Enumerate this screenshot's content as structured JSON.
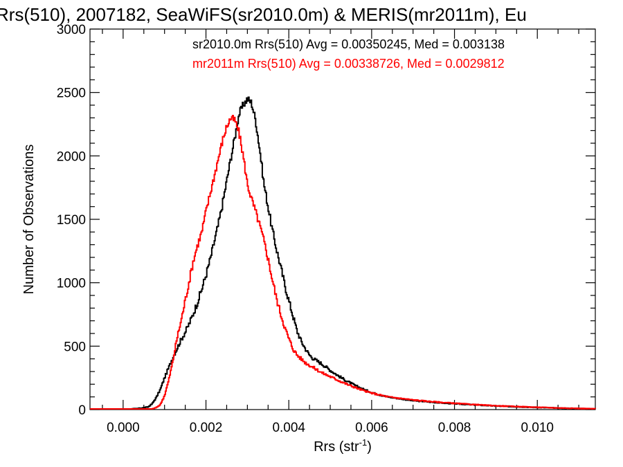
{
  "chart_data": {
    "type": "line",
    "title": "Rrs(510), 2007182, SeaWiFS(sr2010.0m) & MERIS(mr2011m), Eu",
    "xlabel": "Rrs (str",
    "xlabel_sup": "-1",
    "xlabel_close": ")",
    "ylabel": "Number of Observations",
    "xlim": [
      -0.0008,
      0.0114
    ],
    "ylim": [
      0,
      3000
    ],
    "grid": false,
    "x_ticks": [
      {
        "value": 0.0,
        "label": "0.000"
      },
      {
        "value": 0.002,
        "label": "0.002"
      },
      {
        "value": 0.004,
        "label": "0.004"
      },
      {
        "value": 0.006,
        "label": "0.006"
      },
      {
        "value": 0.008,
        "label": "0.008"
      },
      {
        "value": 0.01,
        "label": "0.010"
      }
    ],
    "y_ticks": [
      {
        "value": 0,
        "label": "0"
      },
      {
        "value": 500,
        "label": "500"
      },
      {
        "value": 1000,
        "label": "1000"
      },
      {
        "value": 1500,
        "label": "1500"
      },
      {
        "value": 2000,
        "label": "2000"
      },
      {
        "value": 2500,
        "label": "2500"
      },
      {
        "value": 3000,
        "label": "3000"
      }
    ],
    "annotations": [
      {
        "text": "sr2010.0m Rrs(510) Avg = 0.00350245, Med = 0.003138",
        "color": "#000000"
      },
      {
        "text": "mr2011m Rrs(510) Avg = 0.00338726, Med = 0.0029812",
        "color": "#ff0000"
      }
    ],
    "series": [
      {
        "color": "#000000",
        "x": [
          -0.0008,
          0.0,
          0.0004,
          0.0006,
          0.0007,
          0.0008,
          0.0009,
          0.001,
          0.0011,
          0.0012,
          0.0013,
          0.0014,
          0.0015,
          0.0016,
          0.0017,
          0.0018,
          0.0019,
          0.002,
          0.0021,
          0.0022,
          0.0023,
          0.0024,
          0.0025,
          0.0026,
          0.0027,
          0.0028,
          0.0029,
          0.003,
          0.0031,
          0.0032,
          0.0033,
          0.0034,
          0.0035,
          0.0036,
          0.0037,
          0.0038,
          0.0039,
          0.004,
          0.0041,
          0.0042,
          0.0043,
          0.0044,
          0.0045,
          0.0046,
          0.0047,
          0.0048,
          0.005,
          0.0052,
          0.0054,
          0.0056,
          0.0058,
          0.006,
          0.0062,
          0.0064,
          0.0066,
          0.0068,
          0.007,
          0.0074,
          0.0078,
          0.0082,
          0.0086,
          0.009,
          0.0095,
          0.01,
          0.0105,
          0.011,
          0.0114
        ],
        "values": [
          0,
          0,
          10,
          20,
          45,
          95,
          160,
          250,
          330,
          410,
          480,
          550,
          610,
          680,
          760,
          850,
          950,
          1060,
          1180,
          1320,
          1460,
          1620,
          1800,
          1980,
          2150,
          2330,
          2400,
          2450,
          2420,
          2280,
          2050,
          1780,
          1600,
          1420,
          1270,
          1130,
          990,
          860,
          740,
          620,
          540,
          480,
          430,
          400,
          380,
          360,
          310,
          265,
          225,
          190,
          160,
          135,
          115,
          100,
          90,
          80,
          70,
          60,
          50,
          42,
          35,
          28,
          22,
          17,
          12,
          8,
          5
        ]
      },
      {
        "color": "#ff0000",
        "x": [
          -0.0008,
          0.0,
          0.0004,
          0.0006,
          0.0007,
          0.0008,
          0.0009,
          0.001,
          0.0011,
          0.0012,
          0.0013,
          0.0014,
          0.0015,
          0.0016,
          0.0017,
          0.0018,
          0.0019,
          0.002,
          0.0021,
          0.0022,
          0.0023,
          0.0024,
          0.0025,
          0.0026,
          0.0027,
          0.0028,
          0.0029,
          0.003,
          0.0031,
          0.0032,
          0.0033,
          0.0034,
          0.0035,
          0.0036,
          0.0037,
          0.0038,
          0.0039,
          0.004,
          0.0041,
          0.0042,
          0.0043,
          0.0044,
          0.0045,
          0.0046,
          0.0047,
          0.0048,
          0.005,
          0.0052,
          0.0054,
          0.0056,
          0.0058,
          0.006,
          0.0062,
          0.0064,
          0.0066,
          0.0068,
          0.007,
          0.0074,
          0.0078,
          0.0082,
          0.0086,
          0.009,
          0.0095,
          0.01,
          0.0105,
          0.011,
          0.0114
        ],
        "values": [
          0,
          0,
          0,
          2,
          5,
          15,
          40,
          110,
          230,
          380,
          560,
          700,
          860,
          1020,
          1180,
          1300,
          1400,
          1560,
          1700,
          1840,
          1980,
          2120,
          2230,
          2300,
          2280,
          2180,
          2000,
          1780,
          1660,
          1560,
          1450,
          1330,
          1190,
          1030,
          880,
          760,
          650,
          560,
          480,
          430,
          400,
          370,
          350,
          330,
          310,
          290,
          260,
          230,
          200,
          175,
          150,
          130,
          115,
          100,
          92,
          84,
          76,
          64,
          54,
          45,
          37,
          30,
          24,
          18,
          13,
          9,
          6
        ]
      }
    ]
  }
}
